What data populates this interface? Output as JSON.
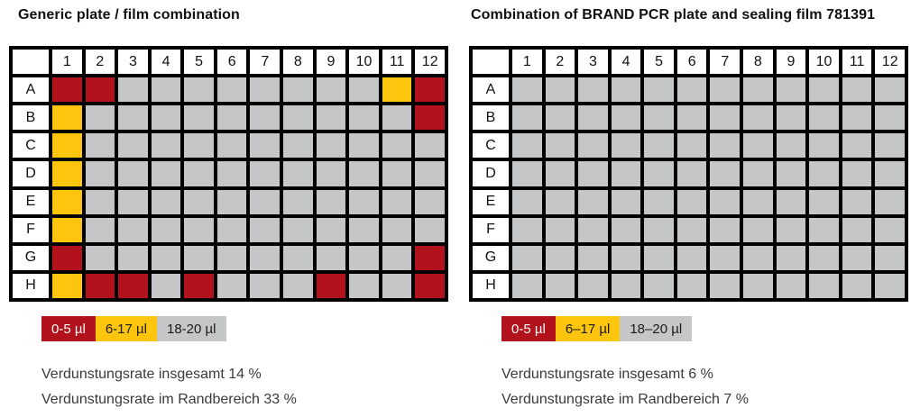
{
  "colors": {
    "red": "#b1121b",
    "yellow": "#fdc50d",
    "gray": "#c5c6c8",
    "grid_line": "#000000",
    "header_bg": "#ffffff"
  },
  "legend_text_colors": {
    "red": "#ffffff",
    "yellow": "#1a1a1a",
    "gray": "#1a1a1a"
  },
  "chart_data": [
    {
      "type": "heatmap",
      "title": "Generic plate / film combination",
      "x_labels": [
        "1",
        "2",
        "3",
        "4",
        "5",
        "6",
        "7",
        "8",
        "9",
        "10",
        "11",
        "12"
      ],
      "y_labels": [
        "A",
        "B",
        "C",
        "D",
        "E",
        "F",
        "G",
        "H"
      ],
      "legend": [
        {
          "category": "red",
          "label": "0-5 µl"
        },
        {
          "category": "yellow",
          "label": "6-17 µl"
        },
        {
          "category": "gray",
          "label": "18-20 µl"
        }
      ],
      "legend_position": "below",
      "values": [
        [
          "red",
          "red",
          "gray",
          "gray",
          "gray",
          "gray",
          "gray",
          "gray",
          "gray",
          "gray",
          "yellow",
          "red"
        ],
        [
          "yellow",
          "gray",
          "gray",
          "gray",
          "gray",
          "gray",
          "gray",
          "gray",
          "gray",
          "gray",
          "gray",
          "red"
        ],
        [
          "yellow",
          "gray",
          "gray",
          "gray",
          "gray",
          "gray",
          "gray",
          "gray",
          "gray",
          "gray",
          "gray",
          "gray"
        ],
        [
          "yellow",
          "gray",
          "gray",
          "gray",
          "gray",
          "gray",
          "gray",
          "gray",
          "gray",
          "gray",
          "gray",
          "gray"
        ],
        [
          "yellow",
          "gray",
          "gray",
          "gray",
          "gray",
          "gray",
          "gray",
          "gray",
          "gray",
          "gray",
          "gray",
          "gray"
        ],
        [
          "yellow",
          "gray",
          "gray",
          "gray",
          "gray",
          "gray",
          "gray",
          "gray",
          "gray",
          "gray",
          "gray",
          "gray"
        ],
        [
          "red",
          "gray",
          "gray",
          "gray",
          "gray",
          "gray",
          "gray",
          "gray",
          "gray",
          "gray",
          "gray",
          "red"
        ],
        [
          "yellow",
          "red",
          "red",
          "gray",
          "red",
          "gray",
          "gray",
          "gray",
          "red",
          "gray",
          "gray",
          "red"
        ]
      ],
      "annotations": [
        "Verdunstungsrate insgesamt 14 %",
        "Verdunstungsrate im Randbereich 33 %"
      ]
    },
    {
      "type": "heatmap",
      "title": "Combination of BRAND PCR plate and sealing film 781391",
      "x_labels": [
        "1",
        "2",
        "3",
        "4",
        "5",
        "6",
        "7",
        "8",
        "9",
        "10",
        "11",
        "12"
      ],
      "y_labels": [
        "A",
        "B",
        "C",
        "D",
        "E",
        "F",
        "G",
        "H"
      ],
      "legend": [
        {
          "category": "red",
          "label": "0-5 µl"
        },
        {
          "category": "yellow",
          "label": "6–17 µl"
        },
        {
          "category": "gray",
          "label": "18–20 µl"
        }
      ],
      "legend_position": "below",
      "values": [
        [
          "gray",
          "gray",
          "gray",
          "gray",
          "gray",
          "gray",
          "gray",
          "gray",
          "gray",
          "gray",
          "gray",
          "gray"
        ],
        [
          "gray",
          "gray",
          "gray",
          "gray",
          "gray",
          "gray",
          "gray",
          "gray",
          "gray",
          "gray",
          "gray",
          "gray"
        ],
        [
          "gray",
          "gray",
          "gray",
          "gray",
          "gray",
          "gray",
          "gray",
          "gray",
          "gray",
          "gray",
          "gray",
          "gray"
        ],
        [
          "gray",
          "gray",
          "gray",
          "gray",
          "gray",
          "gray",
          "gray",
          "gray",
          "gray",
          "gray",
          "gray",
          "gray"
        ],
        [
          "gray",
          "gray",
          "gray",
          "gray",
          "gray",
          "gray",
          "gray",
          "gray",
          "gray",
          "gray",
          "gray",
          "gray"
        ],
        [
          "gray",
          "gray",
          "gray",
          "gray",
          "gray",
          "gray",
          "gray",
          "gray",
          "gray",
          "gray",
          "gray",
          "gray"
        ],
        [
          "gray",
          "gray",
          "gray",
          "gray",
          "gray",
          "gray",
          "gray",
          "gray",
          "gray",
          "gray",
          "gray",
          "gray"
        ],
        [
          "gray",
          "gray",
          "gray",
          "gray",
          "gray",
          "gray",
          "gray",
          "gray",
          "gray",
          "gray",
          "gray",
          "gray"
        ]
      ],
      "annotations": [
        "Verdunstungsrate insgesamt 6 %",
        "Verdunstungsrate im Randbereich 7 %"
      ]
    }
  ]
}
